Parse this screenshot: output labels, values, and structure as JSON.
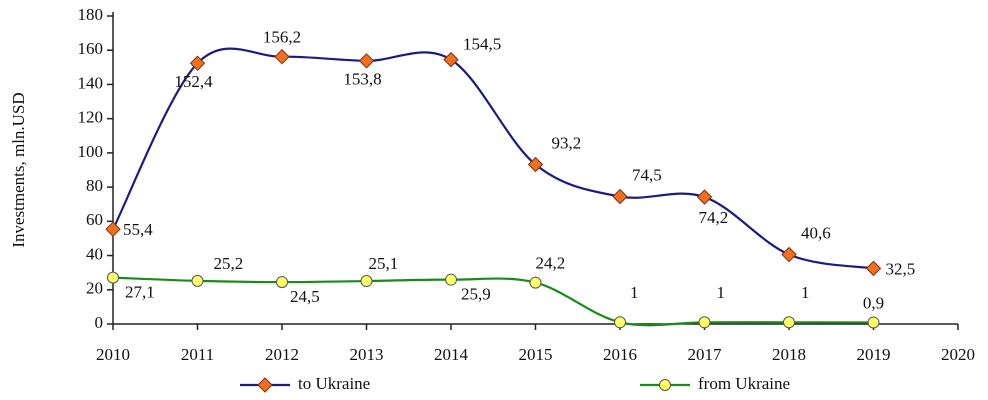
{
  "chart_data": {
    "type": "line",
    "ylabel": "Investments, mln.USD",
    "x": [
      2010,
      2011,
      2012,
      2013,
      2014,
      2015,
      2016,
      2017,
      2018,
      2019
    ],
    "xlim": [
      2010,
      2020
    ],
    "xticks": [
      2010,
      2011,
      2012,
      2013,
      2014,
      2015,
      2016,
      2017,
      2018,
      2019,
      2020
    ],
    "ylim": [
      0,
      180
    ],
    "yticks": [
      0,
      20,
      40,
      60,
      80,
      100,
      120,
      140,
      160,
      180
    ],
    "grid": false,
    "legend": "bottom",
    "series": [
      {
        "name": "to Ukraine",
        "color": "#1c1c80",
        "marker_color": "#f07020",
        "values": [
          55.4,
          152.4,
          156.2,
          153.8,
          154.5,
          93.2,
          74.5,
          74.2,
          40.6,
          32.5
        ],
        "value_labels": [
          "55,4",
          "152,4",
          "156,2",
          "153,8",
          "154,5",
          "93,2",
          "74,5",
          "74,2",
          "40,6",
          "32,5"
        ]
      },
      {
        "name": "from Ukraine",
        "color": "#1a8a1a",
        "marker_color": "#ffff66",
        "values": [
          27.1,
          25.2,
          24.5,
          25.1,
          25.9,
          24.2,
          1,
          1,
          1,
          0.9
        ],
        "value_labels": [
          "27,1",
          "25,2",
          "24,5",
          "25,1",
          "25,9",
          "24,2",
          "1",
          "1",
          "1",
          "0,9"
        ]
      }
    ]
  }
}
